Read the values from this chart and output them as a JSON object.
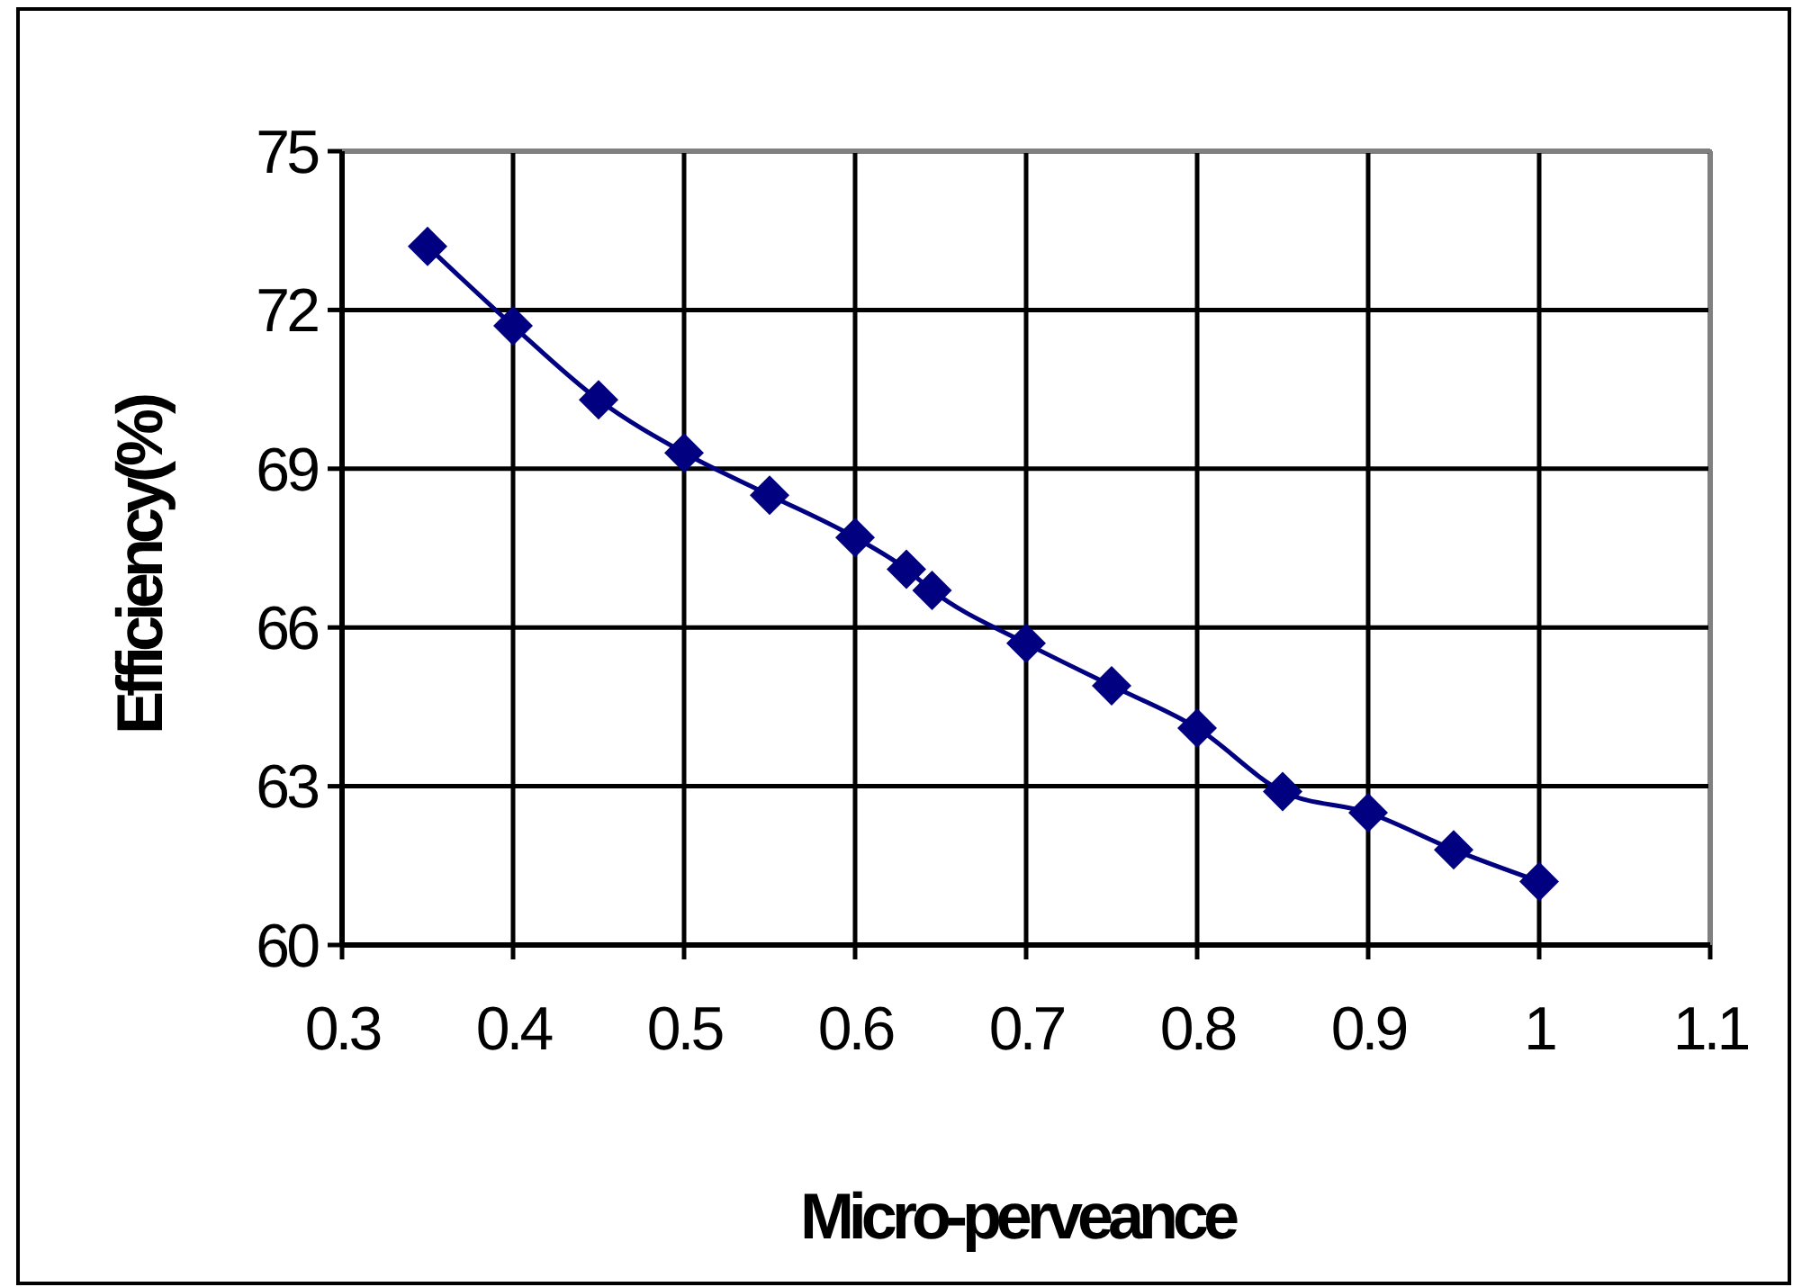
{
  "chart_data": {
    "type": "line",
    "xlabel": "Micro-perveance",
    "ylabel": "Efficiency(%)",
    "x": [
      0.35,
      0.4,
      0.45,
      0.5,
      0.55,
      0.6,
      0.63,
      0.645,
      0.7,
      0.75,
      0.8,
      0.85,
      0.9,
      0.95,
      1.0
    ],
    "series": [
      {
        "color": "#000080",
        "values": [
          73.2,
          71.7,
          70.3,
          69.3,
          68.5,
          67.7,
          67.1,
          66.7,
          65.7,
          64.9,
          64.1,
          62.9,
          62.5,
          61.8,
          61.2
        ]
      }
    ],
    "xlim": [
      0.3,
      1.1
    ],
    "xticks": [
      0.3,
      0.4,
      0.5,
      0.6,
      0.7,
      0.8,
      0.9,
      1,
      1.1
    ],
    "ylim": [
      60,
      75
    ],
    "yticks": [
      60,
      63,
      66,
      69,
      72,
      75
    ],
    "grid": true,
    "marker": "diamond",
    "line_style": "solid"
  }
}
